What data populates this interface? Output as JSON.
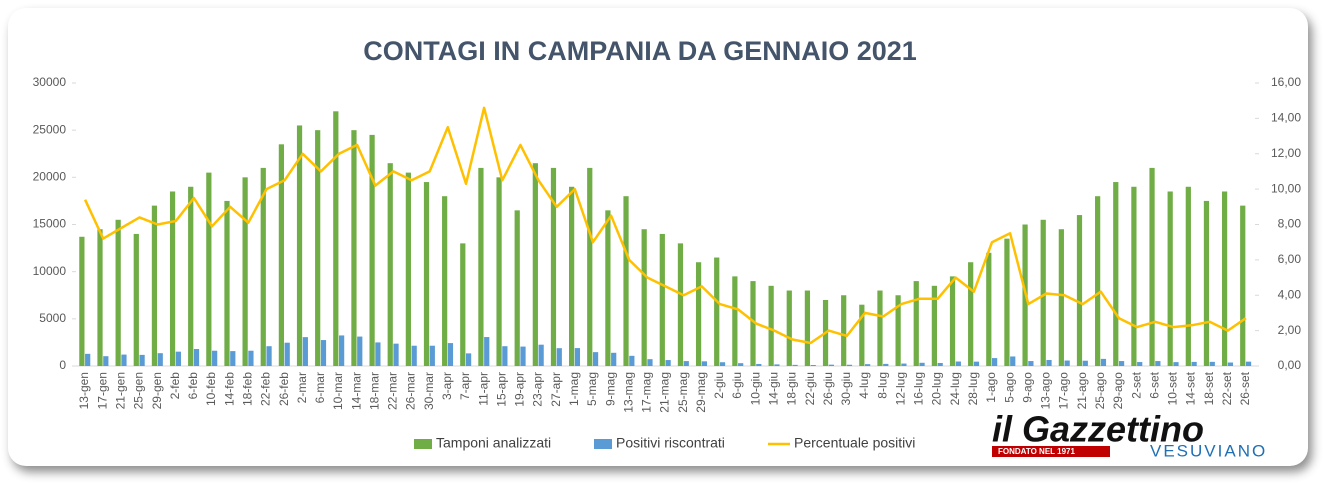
{
  "chart_data": {
    "type": "bar-line",
    "title": "CONTAGI IN CAMPANIA DA GENNAIO 2021",
    "categories": [
      "13-gen",
      "17-gen",
      "21-gen",
      "25-gen",
      "29-gen",
      "2-feb",
      "6-feb",
      "10-feb",
      "14-feb",
      "18-feb",
      "22-feb",
      "26-feb",
      "2-mar",
      "6-mar",
      "10-mar",
      "14-mar",
      "18-mar",
      "22-mar",
      "26-mar",
      "30-mar",
      "3-apr",
      "7-apr",
      "11-apr",
      "15-apr",
      "19-apr",
      "23-apr",
      "27-apr",
      "1-mag",
      "5-mag",
      "9-mag",
      "13-mag",
      "17-mag",
      "21-mag",
      "25-mag",
      "29-mag",
      "2-giu",
      "6-giu",
      "10-giu",
      "14-giu",
      "18-giu",
      "22-giu",
      "26-giu",
      "30-giu",
      "4-lug",
      "8-lug",
      "12-lug",
      "16-lug",
      "20-lug",
      "24-lug",
      "28-lug",
      "1-ago",
      "5-ago",
      "9-ago",
      "13-ago",
      "17-ago",
      "21-ago",
      "25-ago",
      "29-ago",
      "2-set",
      "6-set",
      "10-set",
      "14-set",
      "18-set",
      "22-set",
      "26-set"
    ],
    "series": [
      {
        "name": "Tamponi analizzati",
        "color": "#70ad47",
        "kind": "bar",
        "values": [
          13700,
          14500,
          15500,
          14000,
          17000,
          18500,
          19000,
          20500,
          17500,
          20000,
          21000,
          23500,
          25500,
          25000,
          27000,
          25000,
          24500,
          21500,
          20500,
          19500,
          18000,
          13000,
          21000,
          20000,
          16500,
          21500,
          21000,
          19000,
          21000,
          16500,
          18000,
          14500,
          14000,
          13000,
          11000,
          11500,
          9500,
          9000,
          8500,
          8000,
          8000,
          7000,
          7500,
          6500,
          8000,
          7500,
          9000,
          8500,
          9500,
          11000,
          12000,
          13500,
          15000,
          15500,
          14500,
          16000,
          18000,
          19500,
          19000,
          21000,
          18500,
          19000,
          17500,
          18500,
          17000
        ]
      },
      {
        "name": "Positivi riscontrati",
        "color": "#5b9bd5",
        "kind": "bar",
        "values": [
          1290,
          1040,
          1210,
          1180,
          1360,
          1520,
          1800,
          1620,
          1580,
          1620,
          2100,
          2470,
          3060,
          2750,
          3240,
          3120,
          2500,
          2370,
          2150,
          2150,
          2430,
          1340,
          3070,
          2100,
          2060,
          2260,
          1890,
          1900,
          1470,
          1400,
          1080,
          725,
          630,
          520,
          495,
          400,
          300,
          215,
          170,
          120,
          105,
          140,
          130,
          195,
          225,
          260,
          340,
          320,
          475,
          460,
          840,
          1010,
          525,
          635,
          580,
          560,
          755,
          525,
          420,
          525,
          410,
          435,
          440,
          370,
          460
        ]
      },
      {
        "name": "Percentuale positivi",
        "color": "#ffc000",
        "kind": "line",
        "axis": "y2",
        "values": [
          9.4,
          7.2,
          7.8,
          8.4,
          8.0,
          8.2,
          9.5,
          7.9,
          9.0,
          8.1,
          10.0,
          10.5,
          12.0,
          11.0,
          12.0,
          12.5,
          10.2,
          11.0,
          10.5,
          11.0,
          13.5,
          10.3,
          14.6,
          10.5,
          12.5,
          10.5,
          9.0,
          10.0,
          7.0,
          8.5,
          6.0,
          5.0,
          4.5,
          4.0,
          4.5,
          3.5,
          3.2,
          2.4,
          2.0,
          1.5,
          1.3,
          2.0,
          1.7,
          3.0,
          2.8,
          3.5,
          3.8,
          3.8,
          5.0,
          4.2,
          7.0,
          7.5,
          3.5,
          4.1,
          4.0,
          3.5,
          4.2,
          2.7,
          2.2,
          2.5,
          2.2,
          2.3,
          2.5,
          2.0,
          2.7
        ]
      }
    ],
    "ylim": [
      0,
      30000
    ],
    "yticks": [
      0,
      5000,
      10000,
      15000,
      20000,
      25000,
      30000
    ],
    "y2lim": [
      0,
      16
    ],
    "y2ticks": [
      {
        "value": 0,
        "label": "0,00"
      },
      {
        "value": 2,
        "label": "2,00"
      },
      {
        "value": 4,
        "label": "4,00"
      },
      {
        "value": 6,
        "label": "6,00"
      },
      {
        "value": 8,
        "label": "8,00"
      },
      {
        "value": 10,
        "label": "10,00"
      },
      {
        "value": 12,
        "label": "12,00"
      },
      {
        "value": 14,
        "label": "14,00"
      },
      {
        "value": 16,
        "label": "16,00"
      }
    ],
    "grid": false,
    "legend": "bottom"
  },
  "logo": {
    "name": "il Gazzettino",
    "tagline": "FONDATO NEL 1971",
    "edition": "VESUVIANO"
  }
}
